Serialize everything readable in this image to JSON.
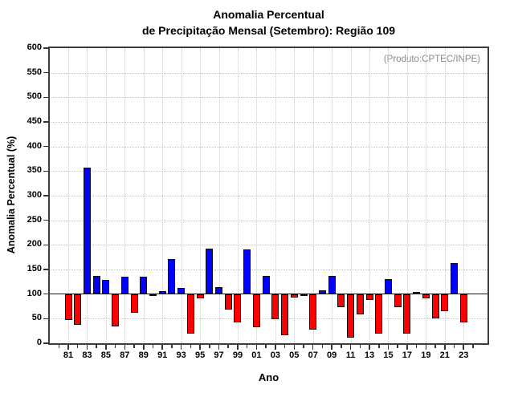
{
  "page": {
    "background": "#ffffff"
  },
  "header": {
    "title_line1": "Anomalia Percentual",
    "title_line2": "de Precipitação Mensal (Setembro): Região 109"
  },
  "chart_data": {
    "type": "bar",
    "title": "Anomalia Percentual",
    "subtitle": "de Precipitação Mensal (Setembro): Região 109",
    "annotation": "(Produto:CPTEC/INPE)",
    "xlabel": "Ano",
    "ylabel": "Anomalia Percentual (%)",
    "ylim": [
      0,
      600
    ],
    "y_ticks": [
      0,
      50,
      100,
      150,
      200,
      250,
      300,
      350,
      400,
      450,
      500,
      550,
      600
    ],
    "baseline": 100,
    "grid": "dotted",
    "legend_position": "none",
    "x_minor_tick_years": {
      "from": 1980,
      "to": 2024,
      "step": 1
    },
    "x_label_years": [
      1981,
      1983,
      1985,
      1987,
      1989,
      1991,
      1993,
      1995,
      1997,
      1999,
      2001,
      2003,
      2005,
      2007,
      2009,
      2011,
      2013,
      2015,
      2017,
      2019,
      2021,
      2023
    ],
    "x_tick_labels": [
      "81",
      "83",
      "85",
      "87",
      "89",
      "91",
      "93",
      "95",
      "97",
      "99",
      "01",
      "03",
      "05",
      "07",
      "09",
      "11",
      "13",
      "15",
      "17",
      "19",
      "21",
      "23"
    ],
    "categories": [
      1981,
      1982,
      1983,
      1984,
      1985,
      1986,
      1987,
      1988,
      1989,
      1990,
      1991,
      1992,
      1993,
      1994,
      1995,
      1996,
      1997,
      1998,
      1999,
      2000,
      2001,
      2002,
      2003,
      2004,
      2005,
      2006,
      2007,
      2008,
      2009,
      2010,
      2011,
      2012,
      2013,
      2014,
      2015,
      2016,
      2017,
      2018,
      2019,
      2020,
      2021,
      2022,
      2023
    ],
    "values": [
      48,
      38,
      357,
      137,
      128,
      34,
      136,
      62,
      135,
      97,
      106,
      172,
      113,
      20,
      92,
      193,
      114,
      69,
      43,
      190,
      32,
      137,
      49,
      17,
      93,
      97,
      28,
      108,
      137,
      73,
      12,
      58,
      88,
      20,
      131,
      73,
      20,
      104,
      91,
      51,
      66,
      163,
      42
    ],
    "colors": {
      "above_baseline": "#0000ff",
      "below_baseline": "#ff0000",
      "bar_border": "#101010",
      "baseline_line": "#111111",
      "frame": "#3d3d3d",
      "gridline": "#c4c4c4",
      "annotation_text": "#8a8a8a"
    }
  }
}
